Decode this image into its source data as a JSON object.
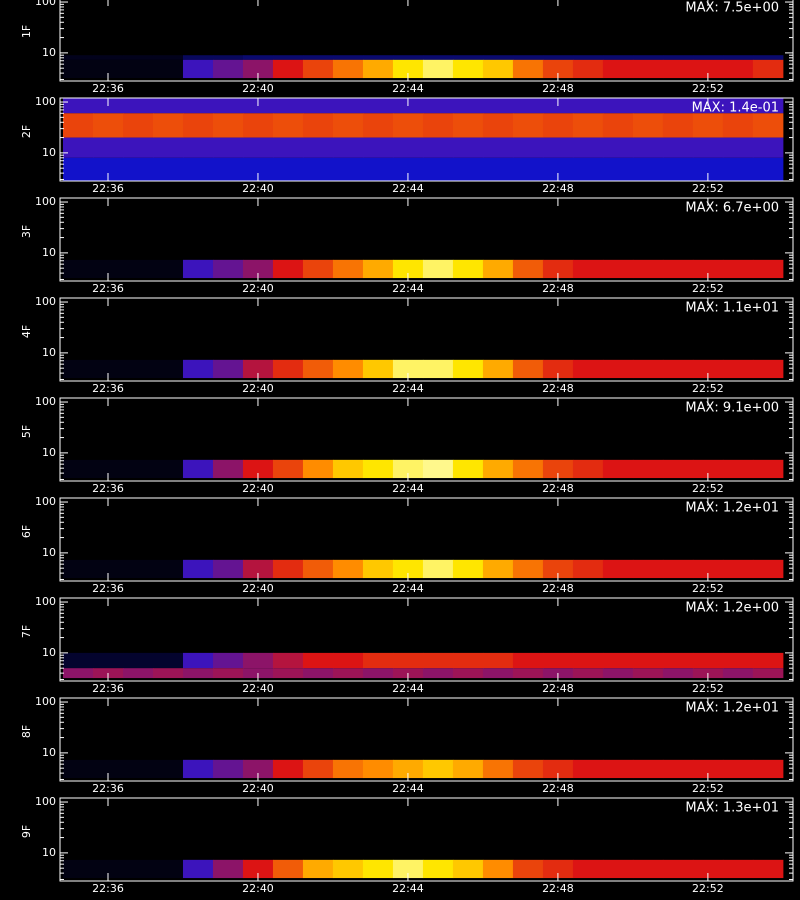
{
  "chart_data": {
    "type": "spectrogram",
    "xlim": [
      1354.72,
      1374.27
    ],
    "xticks": [
      {
        "value": 1356,
        "label": "22:36"
      },
      {
        "value": 1360,
        "label": "22:40"
      },
      {
        "value": 1364,
        "label": "22:44"
      },
      {
        "value": 1368,
        "label": "22:48"
      },
      {
        "value": 1372,
        "label": "22:52"
      }
    ],
    "ylim": [
      2.8,
      120
    ],
    "log_y": true,
    "yticks": [
      10,
      100
    ],
    "yminor": [
      3,
      4,
      5,
      6,
      7,
      8,
      9,
      20,
      30,
      40,
      50,
      60,
      70,
      80,
      90
    ],
    "bins": [
      1354.8,
      1355.6,
      1356.4,
      1357.2,
      1358.0,
      1358.8,
      1359.6,
      1360.4,
      1361.2,
      1362.0,
      1362.8,
      1363.6,
      1364.4,
      1365.2,
      1366.0,
      1366.8,
      1367.6,
      1368.4,
      1369.2,
      1370.0,
      1370.8,
      1371.6,
      1372.4,
      1373.2,
      1374.0
    ],
    "panels": [
      {
        "label": "1F",
        "annotation": "MAX: 7.5e+00",
        "bands": [
          {
            "ylim": [
              7.3,
              9
            ],
            "values": [
              0.03,
              0.03,
              0.03,
              0.03,
              0.1,
              0.1,
              0.12,
              0.12,
              0.12,
              0.12,
              0.12,
              0.12,
              0.12,
              0.12,
              0.12,
              0.12,
              0.12,
              0.12,
              0.12,
              0.12,
              0.12,
              0.12,
              0.12,
              0.12
            ]
          },
          {
            "ylim": [
              3.2,
              7.3
            ],
            "values": [
              0.02,
              0.02,
              0.02,
              0.02,
              0.3,
              0.35,
              0.4,
              0.5,
              0.6,
              0.7,
              0.8,
              0.9,
              0.95,
              0.9,
              0.85,
              0.7,
              0.6,
              0.55,
              0.5,
              0.5,
              0.5,
              0.5,
              0.5,
              0.55
            ]
          }
        ]
      },
      {
        "label": "2F",
        "annotation": "MAX: 1.4e-01",
        "bands": [
          {
            "ylim": [
              60,
              120
            ],
            "values": [
              0.3,
              0.3,
              0.3,
              0.3,
              0.3,
              0.3,
              0.3,
              0.3,
              0.3,
              0.3,
              0.3,
              0.3,
              0.3,
              0.3,
              0.3,
              0.3,
              0.3,
              0.3,
              0.3,
              0.3,
              0.3,
              0.3,
              0.3,
              0.3
            ]
          },
          {
            "ylim": [
              20,
              60
            ],
            "values": [
              0.6,
              0.62,
              0.6,
              0.62,
              0.6,
              0.62,
              0.6,
              0.62,
              0.6,
              0.62,
              0.6,
              0.62,
              0.6,
              0.62,
              0.6,
              0.62,
              0.6,
              0.62,
              0.6,
              0.62,
              0.6,
              0.62,
              0.6,
              0.62
            ]
          },
          {
            "ylim": [
              8,
              20
            ],
            "values": [
              0.3,
              0.3,
              0.3,
              0.3,
              0.3,
              0.3,
              0.3,
              0.3,
              0.3,
              0.3,
              0.3,
              0.3,
              0.3,
              0.3,
              0.3,
              0.3,
              0.3,
              0.3,
              0.3,
              0.3,
              0.3,
              0.3,
              0.3,
              0.3
            ]
          },
          {
            "ylim": [
              2.8,
              8
            ],
            "values": [
              0.22,
              0.22,
              0.22,
              0.22,
              0.22,
              0.22,
              0.22,
              0.22,
              0.22,
              0.22,
              0.22,
              0.22,
              0.22,
              0.22,
              0.22,
              0.22,
              0.22,
              0.22,
              0.22,
              0.22,
              0.22,
              0.22,
              0.22,
              0.22
            ]
          }
        ]
      },
      {
        "label": "3F",
        "annotation": "MAX: 6.7e+00",
        "bands": [
          {
            "ylim": [
              3.2,
              7.3
            ],
            "values": [
              0.02,
              0.02,
              0.02,
              0.02,
              0.3,
              0.35,
              0.4,
              0.5,
              0.6,
              0.7,
              0.8,
              0.9,
              0.95,
              0.9,
              0.8,
              0.65,
              0.55,
              0.5,
              0.5,
              0.5,
              0.5,
              0.5,
              0.5,
              0.5
            ]
          }
        ]
      },
      {
        "label": "4F",
        "annotation": "MAX: 1.1e+01",
        "bands": [
          {
            "ylim": [
              3.2,
              7.3
            ],
            "values": [
              0.02,
              0.02,
              0.02,
              0.02,
              0.3,
              0.35,
              0.45,
              0.55,
              0.65,
              0.75,
              0.85,
              0.95,
              0.95,
              0.9,
              0.8,
              0.65,
              0.55,
              0.5,
              0.5,
              0.5,
              0.5,
              0.5,
              0.5,
              0.5
            ]
          }
        ]
      },
      {
        "label": "5F",
        "annotation": "MAX: 9.1e+00",
        "bands": [
          {
            "ylim": [
              3.2,
              7.3
            ],
            "values": [
              0.02,
              0.02,
              0.02,
              0.02,
              0.3,
              0.4,
              0.5,
              0.6,
              0.75,
              0.85,
              0.9,
              0.95,
              0.97,
              0.9,
              0.8,
              0.7,
              0.6,
              0.55,
              0.5,
              0.5,
              0.5,
              0.5,
              0.5,
              0.5
            ]
          }
        ]
      },
      {
        "label": "6F",
        "annotation": "MAX: 1.2e+01",
        "bands": [
          {
            "ylim": [
              3.2,
              7.3
            ],
            "values": [
              0.02,
              0.02,
              0.02,
              0.02,
              0.3,
              0.35,
              0.45,
              0.55,
              0.65,
              0.75,
              0.85,
              0.9,
              0.95,
              0.9,
              0.8,
              0.7,
              0.6,
              0.55,
              0.5,
              0.5,
              0.5,
              0.5,
              0.5,
              0.5
            ]
          }
        ]
      },
      {
        "label": "7F",
        "annotation": "MAX: 1.2e+00",
        "bands": [
          {
            "ylim": [
              5,
              10
            ],
            "values": [
              0.05,
              0.05,
              0.05,
              0.05,
              0.3,
              0.35,
              0.4,
              0.45,
              0.5,
              0.5,
              0.55,
              0.55,
              0.55,
              0.55,
              0.55,
              0.5,
              0.5,
              0.5,
              0.5,
              0.5,
              0.5,
              0.5,
              0.5,
              0.5
            ]
          },
          {
            "ylim": [
              3.2,
              5
            ],
            "values": [
              0.4,
              0.42,
              0.4,
              0.42,
              0.4,
              0.42,
              0.4,
              0.42,
              0.4,
              0.42,
              0.4,
              0.42,
              0.4,
              0.42,
              0.4,
              0.42,
              0.4,
              0.42,
              0.4,
              0.42,
              0.4,
              0.42,
              0.4,
              0.42
            ]
          }
        ]
      },
      {
        "label": "8F",
        "annotation": "MAX: 1.2e+01",
        "bands": [
          {
            "ylim": [
              3.2,
              7.3
            ],
            "values": [
              0.02,
              0.02,
              0.02,
              0.02,
              0.3,
              0.35,
              0.4,
              0.5,
              0.6,
              0.7,
              0.75,
              0.8,
              0.85,
              0.8,
              0.7,
              0.6,
              0.55,
              0.5,
              0.5,
              0.5,
              0.5,
              0.5,
              0.5,
              0.5
            ]
          }
        ]
      },
      {
        "label": "9F",
        "annotation": "MAX: 1.3e+01",
        "bands": [
          {
            "ylim": [
              3.2,
              7.3
            ],
            "values": [
              0.02,
              0.02,
              0.02,
              0.02,
              0.3,
              0.4,
              0.5,
              0.65,
              0.8,
              0.85,
              0.9,
              0.95,
              0.9,
              0.85,
              0.75,
              0.6,
              0.55,
              0.5,
              0.5,
              0.5,
              0.5,
              0.5,
              0.5,
              0.5
            ]
          }
        ]
      }
    ]
  }
}
